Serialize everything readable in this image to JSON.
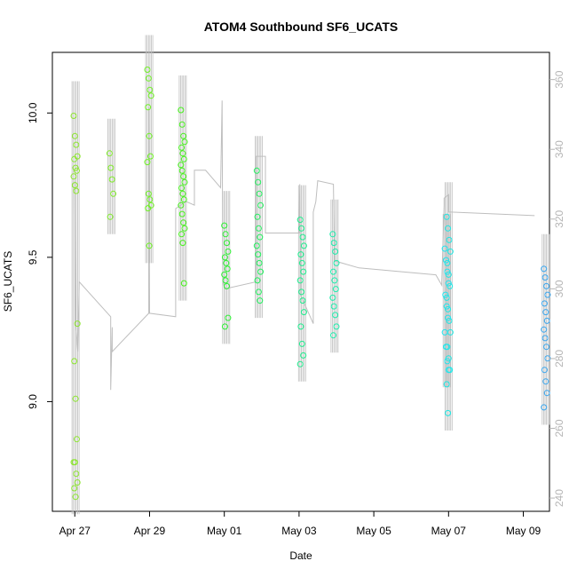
{
  "chart_data": {
    "type": "scatter",
    "title": "ATOM4 Southbound SF6_UCATS",
    "xlabel": "Date",
    "ylabel": "SF6_UCATS",
    "xlim": [
      -0.6,
      12.7
    ],
    "ylim": [
      8.62,
      10.21
    ],
    "y2lim": [
      236.2,
      367.8
    ],
    "x_ticks": [
      {
        "x": 0,
        "label": "Apr 27"
      },
      {
        "x": 2,
        "label": "Apr 29"
      },
      {
        "x": 4,
        "label": "May 01"
      },
      {
        "x": 6,
        "label": "May 03"
      },
      {
        "x": 8,
        "label": "May 05"
      },
      {
        "x": 10,
        "label": "May 07"
      },
      {
        "x": 12,
        "label": "May 09"
      }
    ],
    "y_ticks": [
      9.0,
      9.5,
      10.0
    ],
    "y2_ticks": [
      240,
      260,
      280,
      300,
      320,
      340,
      360
    ],
    "right_axis_color": "#b5b5b5",
    "line_color": "#bebebe",
    "x_unit_note": "x in days since Apr 27 00:00",
    "clusters": [
      {
        "x": 0.02,
        "values": [
          9.99,
          9.92,
          9.89,
          9.85,
          9.84,
          9.81,
          9.8,
          9.78,
          9.75,
          9.73,
          9.27,
          9.14,
          9.01,
          8.87,
          8.79,
          8.79,
          8.75,
          8.72,
          8.7,
          8.67
        ],
        "color": "#8ce62e"
      },
      {
        "x": 0.98,
        "values": [
          9.86,
          9.81,
          9.77,
          9.72,
          9.64
        ],
        "color": "#80ec2a"
      },
      {
        "x": 1.99,
        "values": [
          10.15,
          10.12,
          10.08,
          10.06,
          10.02,
          9.92,
          9.85,
          9.83,
          9.72,
          9.7,
          9.68,
          9.67,
          9.54
        ],
        "color": "#6ef222"
      },
      {
        "x": 2.89,
        "values": [
          10.01,
          9.96,
          9.92,
          9.9,
          9.88,
          9.86,
          9.84,
          9.82,
          9.8,
          9.78,
          9.76,
          9.74,
          9.72,
          9.7,
          9.68,
          9.65,
          9.62,
          9.6,
          9.58,
          9.55,
          9.41
        ],
        "color": "#46f21c"
      },
      {
        "x": 4.05,
        "values": [
          9.61,
          9.58,
          9.55,
          9.52,
          9.5,
          9.48,
          9.46,
          9.44,
          9.42,
          9.4,
          9.29,
          9.26
        ],
        "color": "#2ef034"
      },
      {
        "x": 4.92,
        "values": [
          9.8,
          9.76,
          9.72,
          9.68,
          9.64,
          9.6,
          9.57,
          9.54,
          9.51,
          9.48,
          9.45,
          9.42,
          9.38,
          9.35
        ],
        "color": "#22f05e"
      },
      {
        "x": 6.08,
        "values": [
          9.63,
          9.6,
          9.57,
          9.54,
          9.51,
          9.48,
          9.45,
          9.42,
          9.38,
          9.35,
          9.31,
          9.26,
          9.2,
          9.16,
          9.13
        ],
        "color": "#1eee8e"
      },
      {
        "x": 6.95,
        "values": [
          9.58,
          9.55,
          9.52,
          9.48,
          9.45,
          9.42,
          9.39,
          9.36,
          9.33,
          9.3,
          9.26,
          9.23
        ],
        "color": "#1eeead"
      },
      {
        "x": 10.0,
        "values": [
          9.64,
          9.6,
          9.56,
          9.52,
          9.48,
          9.44,
          9.4,
          9.36,
          9.32,
          9.28,
          9.24,
          9.19,
          9.15,
          9.11,
          9.06,
          8.96
        ],
        "color": "#1ee8e4"
      },
      {
        "x": 9.95,
        "values": [
          9.53,
          9.49,
          9.45,
          9.41,
          9.37,
          9.33,
          9.29,
          9.24,
          9.19,
          9.14,
          9.11
        ],
        "color": "#22e4ee"
      },
      {
        "x": 12.6,
        "values": [
          9.46,
          9.43,
          9.4,
          9.37,
          9.34,
          9.31,
          9.28,
          9.25,
          9.22,
          9.19,
          9.15,
          9.11,
          9.07,
          9.03,
          8.98
        ],
        "color": "#3aa6ee"
      }
    ],
    "line_path_y2": [
      [
        0.0,
        331
      ],
      [
        0.02,
        291
      ],
      [
        0.08,
        282
      ],
      [
        0.12,
        302
      ],
      [
        0.96,
        292
      ],
      [
        0.96,
        271
      ],
      [
        1.0,
        289
      ],
      [
        1.0,
        282
      ],
      [
        1.98,
        293
      ],
      [
        1.98,
        352
      ],
      [
        2.0,
        293
      ],
      [
        2.7,
        292
      ],
      [
        2.7,
        323
      ],
      [
        2.98,
        325
      ],
      [
        3.2,
        324
      ],
      [
        3.2,
        334
      ],
      [
        3.5,
        334
      ],
      [
        3.9,
        329
      ],
      [
        3.94,
        354
      ],
      [
        3.96,
        302
      ],
      [
        4.02,
        300
      ],
      [
        4.85,
        302
      ],
      [
        4.85,
        338
      ],
      [
        5.1,
        338
      ],
      [
        5.1,
        316
      ],
      [
        6.0,
        316
      ],
      [
        6.02,
        330
      ],
      [
        6.05,
        298
      ],
      [
        6.38,
        290
      ],
      [
        6.38,
        322
      ],
      [
        6.45,
        325
      ],
      [
        6.5,
        331
      ],
      [
        6.92,
        330
      ],
      [
        6.95,
        308
      ],
      [
        7.6,
        306
      ],
      [
        9.66,
        304
      ],
      [
        9.82,
        301
      ],
      [
        9.82,
        302
      ],
      [
        9.88,
        324
      ],
      [
        9.88,
        326
      ],
      [
        10.0,
        327
      ],
      [
        10.0,
        322
      ],
      [
        10.05,
        322
      ],
      [
        12.3,
        321
      ]
    ]
  }
}
